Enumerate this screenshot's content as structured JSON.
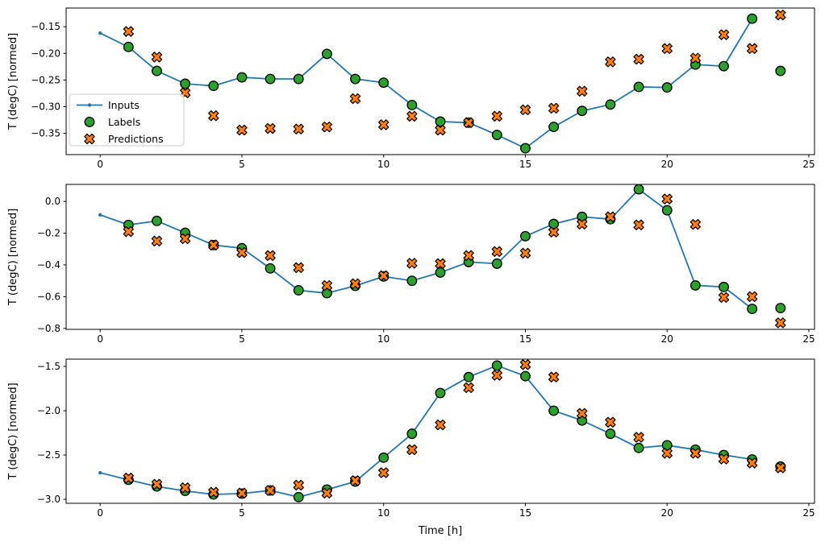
{
  "figure": {
    "background": "#ffffff",
    "xlabel": "Time [h]",
    "ylabel": "T (degC) [normed]",
    "legend": {
      "entries": [
        "Inputs",
        "Labels",
        "Predictions"
      ],
      "location": "left-middle-of-first-subplot"
    },
    "colors": {
      "inputs_line": "#1f77b4",
      "labels_marker": "#2ca02c",
      "predictions_marker": "#ff7f0e",
      "marker_edge": "#000000",
      "axes": "#000000",
      "legend_border": "#cccccc"
    }
  },
  "chart_data": [
    {
      "type": "line",
      "subplot": 1,
      "title": "",
      "xlabel": "",
      "ylabel": "T (degC) [normed]",
      "grid": false,
      "xlim": [
        -1.2,
        25.2
      ],
      "ylim": [
        -0.39,
        -0.115
      ],
      "xticks": [
        0,
        5,
        10,
        15,
        20,
        25
      ],
      "xtick_labels": [
        "0",
        "5",
        "10",
        "15",
        "20",
        "25"
      ],
      "yticks": [
        -0.15,
        -0.2,
        -0.25,
        -0.3,
        -0.35
      ],
      "ytick_labels": [
        "−0.15",
        "−0.20",
        "−0.25",
        "−0.30",
        "−0.35"
      ],
      "legend": true,
      "series": [
        {
          "name": "Inputs",
          "type": "line",
          "marker": "dot",
          "color": "#1f77b4",
          "x": [
            0,
            1,
            2,
            3,
            4,
            5,
            6,
            7,
            8,
            9,
            10,
            11,
            12,
            13,
            14,
            15,
            16,
            17,
            18,
            19,
            20,
            21,
            22,
            23
          ],
          "y": [
            -0.162,
            -0.188,
            -0.233,
            -0.257,
            -0.261,
            -0.245,
            -0.248,
            -0.248,
            -0.201,
            -0.248,
            -0.255,
            -0.297,
            -0.328,
            -0.33,
            -0.353,
            -0.378,
            -0.338,
            -0.308,
            -0.296,
            -0.263,
            -0.264,
            -0.221,
            -0.224,
            -0.135
          ]
        },
        {
          "name": "Labels",
          "type": "scatter",
          "marker": "circle",
          "color": "#2ca02c",
          "edge": "#000000",
          "x": [
            1,
            2,
            3,
            4,
            5,
            6,
            7,
            8,
            9,
            10,
            11,
            12,
            13,
            14,
            15,
            16,
            17,
            18,
            19,
            20,
            21,
            22,
            23,
            24
          ],
          "y": [
            -0.188,
            -0.233,
            -0.257,
            -0.261,
            -0.245,
            -0.248,
            -0.248,
            -0.201,
            -0.248,
            -0.255,
            -0.297,
            -0.328,
            -0.33,
            -0.353,
            -0.378,
            -0.338,
            -0.308,
            -0.296,
            -0.263,
            -0.264,
            -0.221,
            -0.224,
            -0.135,
            -0.233
          ]
        },
        {
          "name": "Predictions",
          "type": "scatter",
          "marker": "X",
          "color": "#ff7f0e",
          "edge": "#000000",
          "x": [
            1,
            2,
            3,
            4,
            5,
            6,
            7,
            8,
            9,
            10,
            11,
            12,
            13,
            14,
            15,
            16,
            17,
            18,
            19,
            20,
            21,
            22,
            23,
            24
          ],
          "y": [
            -0.159,
            -0.207,
            -0.274,
            -0.317,
            -0.344,
            -0.341,
            -0.342,
            -0.338,
            -0.285,
            -0.334,
            -0.318,
            -0.344,
            -0.33,
            -0.318,
            -0.306,
            -0.303,
            -0.271,
            -0.216,
            -0.211,
            -0.191,
            -0.209,
            -0.165,
            -0.191,
            -0.128
          ]
        }
      ]
    },
    {
      "type": "line",
      "subplot": 2,
      "title": "",
      "xlabel": "",
      "ylabel": "T (degC) [normed]",
      "grid": false,
      "xlim": [
        -1.2,
        25.2
      ],
      "ylim": [
        -0.806,
        0.107
      ],
      "xticks": [
        0,
        5,
        10,
        15,
        20,
        25
      ],
      "xtick_labels": [
        "0",
        "5",
        "10",
        "15",
        "20",
        "25"
      ],
      "yticks": [
        0.0,
        -0.2,
        -0.4,
        -0.6,
        -0.8
      ],
      "ytick_labels": [
        "0.0",
        "−0.2",
        "−0.4",
        "−0.6",
        "−0.8"
      ],
      "legend": false,
      "series": [
        {
          "name": "Inputs",
          "type": "line",
          "marker": "dot",
          "color": "#1f77b4",
          "x": [
            0,
            1,
            2,
            3,
            4,
            5,
            6,
            7,
            8,
            9,
            10,
            11,
            12,
            13,
            14,
            15,
            16,
            17,
            18,
            19,
            20,
            21,
            22,
            23
          ],
          "y": [
            -0.085,
            -0.148,
            -0.123,
            -0.198,
            -0.275,
            -0.295,
            -0.422,
            -0.56,
            -0.578,
            -0.532,
            -0.473,
            -0.5,
            -0.448,
            -0.382,
            -0.392,
            -0.219,
            -0.142,
            -0.097,
            -0.112,
            0.076,
            -0.056,
            -0.529,
            -0.539,
            -0.677
          ]
        },
        {
          "name": "Labels",
          "type": "scatter",
          "marker": "circle",
          "color": "#2ca02c",
          "edge": "#000000",
          "x": [
            1,
            2,
            3,
            4,
            5,
            6,
            7,
            8,
            9,
            10,
            11,
            12,
            13,
            14,
            15,
            16,
            17,
            18,
            19,
            20,
            21,
            22,
            23,
            24
          ],
          "y": [
            -0.148,
            -0.123,
            -0.198,
            -0.275,
            -0.295,
            -0.422,
            -0.56,
            -0.578,
            -0.532,
            -0.473,
            -0.5,
            -0.448,
            -0.382,
            -0.392,
            -0.219,
            -0.142,
            -0.097,
            -0.112,
            0.076,
            -0.056,
            -0.529,
            -0.539,
            -0.677,
            -0.672
          ]
        },
        {
          "name": "Predictions",
          "type": "scatter",
          "marker": "X",
          "color": "#ff7f0e",
          "edge": "#000000",
          "x": [
            1,
            2,
            3,
            4,
            5,
            6,
            7,
            8,
            9,
            10,
            11,
            12,
            13,
            14,
            15,
            16,
            17,
            18,
            19,
            20,
            21,
            22,
            23,
            24
          ],
          "y": [
            -0.19,
            -0.25,
            -0.235,
            -0.275,
            -0.322,
            -0.341,
            -0.417,
            -0.53,
            -0.519,
            -0.468,
            -0.39,
            -0.392,
            -0.341,
            -0.316,
            -0.326,
            -0.193,
            -0.143,
            -0.097,
            -0.148,
            0.015,
            -0.145,
            -0.605,
            -0.6,
            -0.765
          ]
        }
      ]
    },
    {
      "type": "line",
      "subplot": 3,
      "title": "",
      "xlabel": "Time [h]",
      "ylabel": "T (degC) [normed]",
      "grid": false,
      "xlim": [
        -1.2,
        25.2
      ],
      "ylim": [
        -3.045,
        -1.418
      ],
      "xticks": [
        0,
        5,
        10,
        15,
        20,
        25
      ],
      "xtick_labels": [
        "0",
        "5",
        "10",
        "15",
        "20",
        "25"
      ],
      "yticks": [
        -1.5,
        -2.0,
        -2.5,
        -3.0
      ],
      "ytick_labels": [
        "−1.5",
        "−2.0",
        "−2.5",
        "−3.0"
      ],
      "legend": false,
      "series": [
        {
          "name": "Inputs",
          "type": "line",
          "marker": "dot",
          "color": "#1f77b4",
          "x": [
            0,
            1,
            2,
            3,
            4,
            5,
            6,
            7,
            8,
            9,
            10,
            11,
            12,
            13,
            14,
            15,
            16,
            17,
            18,
            19,
            20,
            21,
            22,
            23
          ],
          "y": [
            -2.7,
            -2.78,
            -2.855,
            -2.905,
            -2.945,
            -2.935,
            -2.9,
            -2.975,
            -2.89,
            -2.8,
            -2.53,
            -2.26,
            -1.8,
            -1.62,
            -1.49,
            -1.61,
            -2.0,
            -2.11,
            -2.26,
            -2.42,
            -2.39,
            -2.44,
            -2.5,
            -2.55
          ]
        },
        {
          "name": "Labels",
          "type": "scatter",
          "marker": "circle",
          "color": "#2ca02c",
          "edge": "#000000",
          "x": [
            1,
            2,
            3,
            4,
            5,
            6,
            7,
            8,
            9,
            10,
            11,
            12,
            13,
            14,
            15,
            16,
            17,
            18,
            19,
            20,
            21,
            22,
            23,
            24
          ],
          "y": [
            -2.78,
            -2.855,
            -2.905,
            -2.945,
            -2.935,
            -2.9,
            -2.975,
            -2.89,
            -2.8,
            -2.53,
            -2.26,
            -1.8,
            -1.62,
            -1.49,
            -1.61,
            -2.0,
            -2.11,
            -2.26,
            -2.42,
            -2.39,
            -2.44,
            -2.5,
            -2.55,
            -2.63
          ]
        },
        {
          "name": "Predictions",
          "type": "scatter",
          "marker": "X",
          "color": "#ff7f0e",
          "edge": "#000000",
          "x": [
            1,
            2,
            3,
            4,
            5,
            6,
            7,
            8,
            9,
            10,
            11,
            12,
            13,
            14,
            15,
            16,
            17,
            18,
            19,
            20,
            21,
            22,
            23,
            24
          ],
          "y": [
            -2.76,
            -2.83,
            -2.87,
            -2.92,
            -2.93,
            -2.9,
            -2.84,
            -2.93,
            -2.79,
            -2.7,
            -2.44,
            -2.16,
            -1.74,
            -1.6,
            -1.48,
            -1.62,
            -2.03,
            -2.13,
            -2.3,
            -2.48,
            -2.48,
            -2.545,
            -2.59,
            -2.645
          ]
        }
      ]
    }
  ]
}
